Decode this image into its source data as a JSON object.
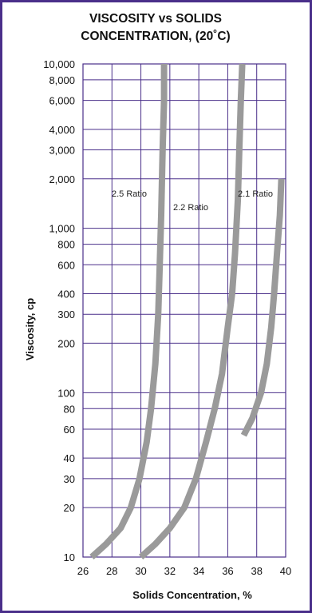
{
  "chart_data": {
    "type": "line",
    "title": [
      "VISCOSITY vs SOLIDS",
      "CONCENTRATION, (20˚C)"
    ],
    "xlabel": "Solids Concentration, %",
    "ylabel": "Viscosity, cp",
    "xlim": [
      26,
      40
    ],
    "ylim": [
      10,
      10000
    ],
    "yscale": "log",
    "x_ticks": [
      26,
      28,
      30,
      32,
      34,
      36,
      38,
      40
    ],
    "x_tick_labels": [
      "26",
      "28",
      "30",
      "32",
      "34",
      "36",
      "38",
      "40"
    ],
    "y_ticks": [
      10,
      20,
      30,
      40,
      60,
      80,
      100,
      200,
      300,
      400,
      600,
      800,
      1000,
      2000,
      3000,
      4000,
      6000,
      8000,
      10000
    ],
    "y_tick_labels": [
      "10",
      "20",
      "30",
      "40",
      "60",
      "80",
      "100",
      "200",
      "300",
      "400",
      "600",
      "800",
      "1,000",
      "2,000",
      "3,000",
      "4,000",
      "6,000",
      "8,000",
      "10,000"
    ],
    "grid": true,
    "colors": {
      "frame": "#4a2f8a",
      "grid": "#4a2f8a",
      "series": "#9a9a9a"
    },
    "series": [
      {
        "name": "2.5 Ratio",
        "x": [
          26.6,
          27.6,
          28.6,
          29.3,
          29.9,
          30.4,
          30.7,
          31.0,
          31.2,
          31.3,
          31.4,
          31.5,
          31.6,
          31.6
        ],
        "y": [
          10,
          12,
          15,
          20,
          30,
          50,
          80,
          150,
          300,
          600,
          1200,
          3000,
          6000,
          10000
        ]
      },
      {
        "name": "2.2 Ratio",
        "x": [
          30.0,
          31.0,
          32.0,
          33.0,
          33.8,
          34.5,
          35.1,
          35.6,
          36.0,
          36.3,
          36.5,
          36.7,
          36.8,
          36.9,
          37.0
        ],
        "y": [
          10,
          12,
          15,
          20,
          30,
          50,
          80,
          130,
          250,
          400,
          700,
          1500,
          3000,
          6000,
          10000
        ]
      },
      {
        "name": "2.1 Ratio",
        "x": [
          37.1,
          37.7,
          38.3,
          38.7,
          39.0,
          39.2,
          39.4,
          39.6,
          39.7
        ],
        "y": [
          55,
          70,
          100,
          150,
          250,
          400,
          700,
          1200,
          2000
        ]
      }
    ],
    "annotations": [
      "2.5 Ratio",
      "2.2 Ratio",
      "2.1 Ratio"
    ]
  }
}
